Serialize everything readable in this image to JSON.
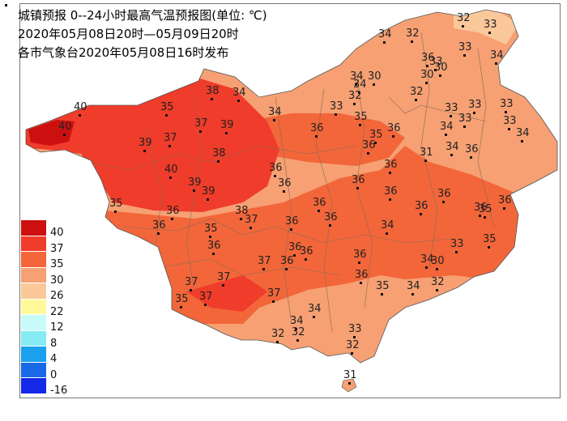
{
  "header": {
    "line1": "城镇预报 0--24小时最高气温预报图(单位: ℃)",
    "line2": "2020年05月08日20时—05月09日20时",
    "line3": "各市气象台2020年05月08日16时发布"
  },
  "legend": [
    {
      "label": "40",
      "color": "#cc1010"
    },
    {
      "label": "37",
      "color": "#f03c2a"
    },
    {
      "label": "35",
      "color": "#f2663a"
    },
    {
      "label": "30",
      "color": "#f6a073"
    },
    {
      "label": "26",
      "color": "#fbc89a"
    },
    {
      "label": "22",
      "color": "#fff99a"
    },
    {
      "label": "12",
      "color": "#c9fafa"
    },
    {
      "label": "8",
      "color": "#86ecf3"
    },
    {
      "label": "4",
      "color": "#1aa0ee"
    },
    {
      "label": "0",
      "color": "#1968e6"
    },
    {
      "label": "-16",
      "color": "#1428e8"
    }
  ],
  "cities": [
    {
      "value": "40"
    },
    {
      "value": "40"
    },
    {
      "value": "35"
    },
    {
      "value": "38"
    },
    {
      "value": "34"
    },
    {
      "value": "37"
    },
    {
      "value": "39"
    },
    {
      "value": "37"
    },
    {
      "value": "39"
    },
    {
      "value": "38"
    },
    {
      "value": "40"
    },
    {
      "value": "39"
    },
    {
      "value": "39"
    },
    {
      "value": "35"
    },
    {
      "value": "36"
    },
    {
      "value": "36"
    },
    {
      "value": "38"
    },
    {
      "value": "37"
    },
    {
      "value": "35"
    },
    {
      "value": "36"
    },
    {
      "value": "36"
    },
    {
      "value": "36"
    },
    {
      "value": "37"
    },
    {
      "value": "36"
    },
    {
      "value": "36"
    },
    {
      "value": "37"
    },
    {
      "value": "37"
    },
    {
      "value": "35"
    },
    {
      "value": "37"
    },
    {
      "value": "34"
    },
    {
      "value": "32"
    },
    {
      "value": "32"
    },
    {
      "value": "34"
    },
    {
      "value": "33"
    },
    {
      "value": "32"
    },
    {
      "value": "31"
    },
    {
      "value": "36"
    },
    {
      "value": "36"
    },
    {
      "value": "34"
    },
    {
      "value": "34"
    },
    {
      "value": "35"
    },
    {
      "value": "36"
    },
    {
      "value": "36"
    },
    {
      "value": "36"
    },
    {
      "value": "35"
    },
    {
      "value": "36"
    },
    {
      "value": "36"
    },
    {
      "value": "36"
    },
    {
      "value": "36"
    },
    {
      "value": "36"
    },
    {
      "value": "34"
    },
    {
      "value": "33"
    },
    {
      "value": "37"
    },
    {
      "value": "35"
    },
    {
      "value": "34"
    },
    {
      "value": "36"
    },
    {
      "value": "36"
    },
    {
      "value": "36"
    },
    {
      "value": "36"
    },
    {
      "value": "35"
    },
    {
      "value": "36"
    },
    {
      "value": "31"
    },
    {
      "value": "34"
    },
    {
      "value": "34"
    },
    {
      "value": "36"
    },
    {
      "value": "36"
    },
    {
      "value": "35"
    },
    {
      "value": "34"
    },
    {
      "value": "30"
    },
    {
      "value": "32"
    },
    {
      "value": "33"
    },
    {
      "value": "33"
    },
    {
      "value": "33"
    },
    {
      "value": "33"
    },
    {
      "value": "33"
    },
    {
      "value": "33"
    },
    {
      "value": "34"
    },
    {
      "value": "34"
    },
    {
      "value": "30"
    },
    {
      "value": "32"
    },
    {
      "value": "32"
    },
    {
      "value": "32"
    },
    {
      "value": "33"
    },
    {
      "value": "30"
    },
    {
      "value": "30"
    },
    {
      "value": "32"
    },
    {
      "value": "33"
    },
    {
      "value": "33"
    },
    {
      "value": "34"
    },
    {
      "value": "34"
    },
    {
      "value": "36"
    },
    {
      "value": "35"
    },
    {
      "value": "36"
    },
    {
      "value": "34"
    },
    {
      "value": "34"
    }
  ]
}
